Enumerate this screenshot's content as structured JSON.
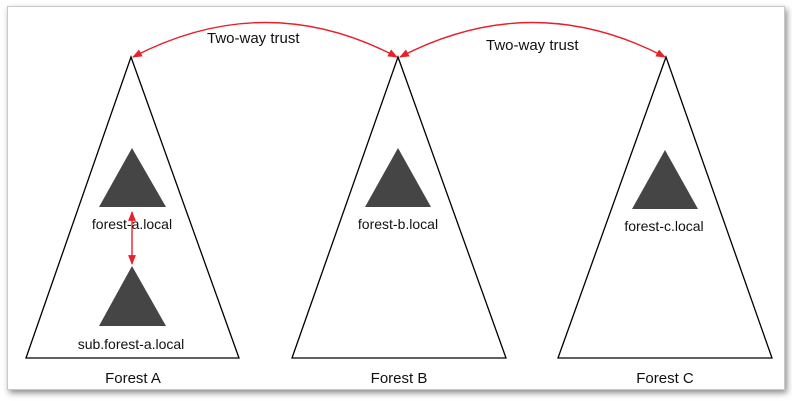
{
  "colors": {
    "outline": "#000000",
    "domain_fill": "#454545",
    "trust_arrow": "#e8202a"
  },
  "forests": [
    {
      "label": "Forest A",
      "domains": [
        {
          "name": "forest-a.local",
          "icon": "domain-triangle-icon"
        },
        {
          "name": "sub.forest-a.local",
          "icon": "domain-triangle-icon"
        }
      ]
    },
    {
      "label": "Forest B",
      "domains": [
        {
          "name": "forest-b.local",
          "icon": "domain-triangle-icon"
        }
      ]
    },
    {
      "label": "Forest C",
      "domains": [
        {
          "name": "forest-c.local",
          "icon": "domain-triangle-icon"
        }
      ]
    }
  ],
  "trusts": [
    {
      "label": "Two-way trust",
      "from": "Forest A",
      "to": "Forest B"
    },
    {
      "label": "Two-way trust",
      "from": "Forest B",
      "to": "Forest C"
    }
  ]
}
